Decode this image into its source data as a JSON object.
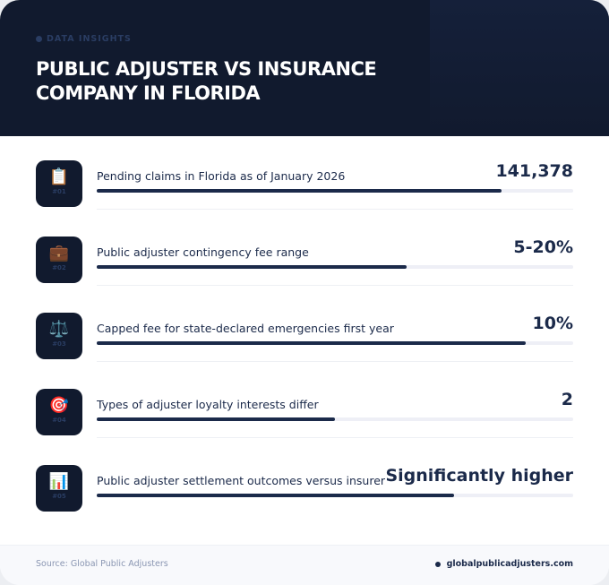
{
  "header": {
    "eyebrow": "DATA INSIGHTS",
    "title": "PUBLIC ADJUSTER VS INSURANCE COMPANY IN FLORIDA"
  },
  "colors": {
    "header_bg": "#111a2e",
    "accent": "#1b2a4a",
    "track": "#eeeff6"
  },
  "stats": [
    {
      "icon": "clipboard-icon",
      "emoji": "📋",
      "num": "#01",
      "label": "Pending claims in Florida as of January 2026",
      "value": "141,378",
      "progress": 0.85
    },
    {
      "icon": "briefcase-icon",
      "emoji": "💼",
      "num": "#02",
      "label": "Public adjuster contingency fee range",
      "value": "5-20%",
      "progress": 0.65
    },
    {
      "icon": "scales-icon",
      "emoji": "⚖️",
      "num": "#03",
      "label": "Capped fee for state-declared emergencies first year",
      "value": "10%",
      "progress": 0.9
    },
    {
      "icon": "target-icon",
      "emoji": "🎯",
      "num": "#04",
      "label": "Types of adjuster loyalty interests differ",
      "value": "2",
      "progress": 0.5
    },
    {
      "icon": "bar-chart-icon",
      "emoji": "📊",
      "num": "#05",
      "label": "Public adjuster settlement outcomes versus insurer",
      "value": "Significantly higher",
      "progress": 0.75
    }
  ],
  "footer": {
    "source": "Source: Global Public Adjusters",
    "site": "globalpublicadjusters.com"
  }
}
